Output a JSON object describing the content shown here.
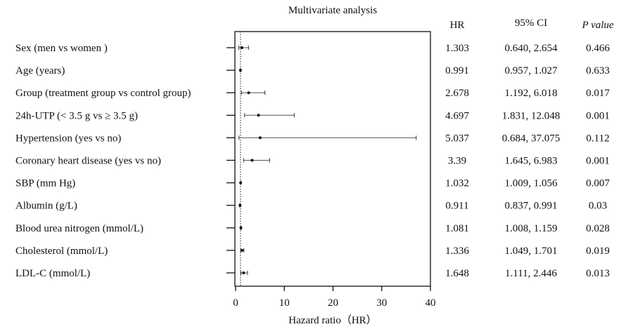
{
  "chart_data": {
    "type": "forest",
    "title": "Multivariate analysis",
    "xlabel": "Hazard ratio（HR）",
    "xlim": [
      0,
      40
    ],
    "xticks": [
      0,
      10,
      20,
      30,
      40
    ],
    "reference_line": 1,
    "column_headers": {
      "hr": "HR",
      "ci": "95% CI",
      "p": "P value"
    },
    "rows": [
      {
        "label": "Sex (men vs women )",
        "hr": 1.303,
        "lo": 0.64,
        "hi": 2.654,
        "hr_text": "1.303",
        "ci_text": "0.640, 2.654",
        "p_text": "0.466"
      },
      {
        "label": "Age (years)",
        "hr": 0.991,
        "lo": 0.957,
        "hi": 1.027,
        "hr_text": "0.991",
        "ci_text": "0.957, 1.027",
        "p_text": "0.633"
      },
      {
        "label": "Group (treatment group vs control group)",
        "hr": 2.678,
        "lo": 1.192,
        "hi": 6.018,
        "hr_text": "2.678",
        "ci_text": "1.192, 6.018",
        "p_text": "0.017"
      },
      {
        "label": "24h-UTP (< 3.5 g vs ≥ 3.5 g)",
        "hr": 4.697,
        "lo": 1.831,
        "hi": 12.048,
        "hr_text": "4.697",
        "ci_text": "1.831, 12.048",
        "p_text": "0.001"
      },
      {
        "label": "Hypertension (yes vs no)",
        "hr": 5.037,
        "lo": 0.684,
        "hi": 37.075,
        "hr_text": "5.037",
        "ci_text": "0.684, 37.075",
        "p_text": "0.112"
      },
      {
        "label": "Coronary heart disease (yes vs no)",
        "hr": 3.39,
        "lo": 1.645,
        "hi": 6.983,
        "hr_text": "3.39",
        "ci_text": "1.645, 6.983",
        "p_text": "0.001"
      },
      {
        "label": "SBP (mm Hg)",
        "hr": 1.032,
        "lo": 1.009,
        "hi": 1.056,
        "hr_text": "1.032",
        "ci_text": "1.009, 1.056",
        "p_text": "0.007"
      },
      {
        "label": "Albumin (g/L)",
        "hr": 0.911,
        "lo": 0.837,
        "hi": 0.991,
        "hr_text": "0.911",
        "ci_text": "0.837, 0.991",
        "p_text": "0.03"
      },
      {
        "label": "Blood urea nitrogen (mmol/L)",
        "hr": 1.081,
        "lo": 1.008,
        "hi": 1.159,
        "hr_text": "1.081",
        "ci_text": "1.008, 1.159",
        "p_text": "0.028"
      },
      {
        "label": "Cholesterol (mmol/L)",
        "hr": 1.336,
        "lo": 1.049,
        "hi": 1.701,
        "hr_text": "1.336",
        "ci_text": "1.049, 1.701",
        "p_text": "0.019"
      },
      {
        "label": "LDL-C (mmol/L)",
        "hr": 1.648,
        "lo": 1.111,
        "hi": 2.446,
        "hr_text": "1.648",
        "ci_text": "1.111, 2.446",
        "p_text": "0.013"
      }
    ]
  }
}
